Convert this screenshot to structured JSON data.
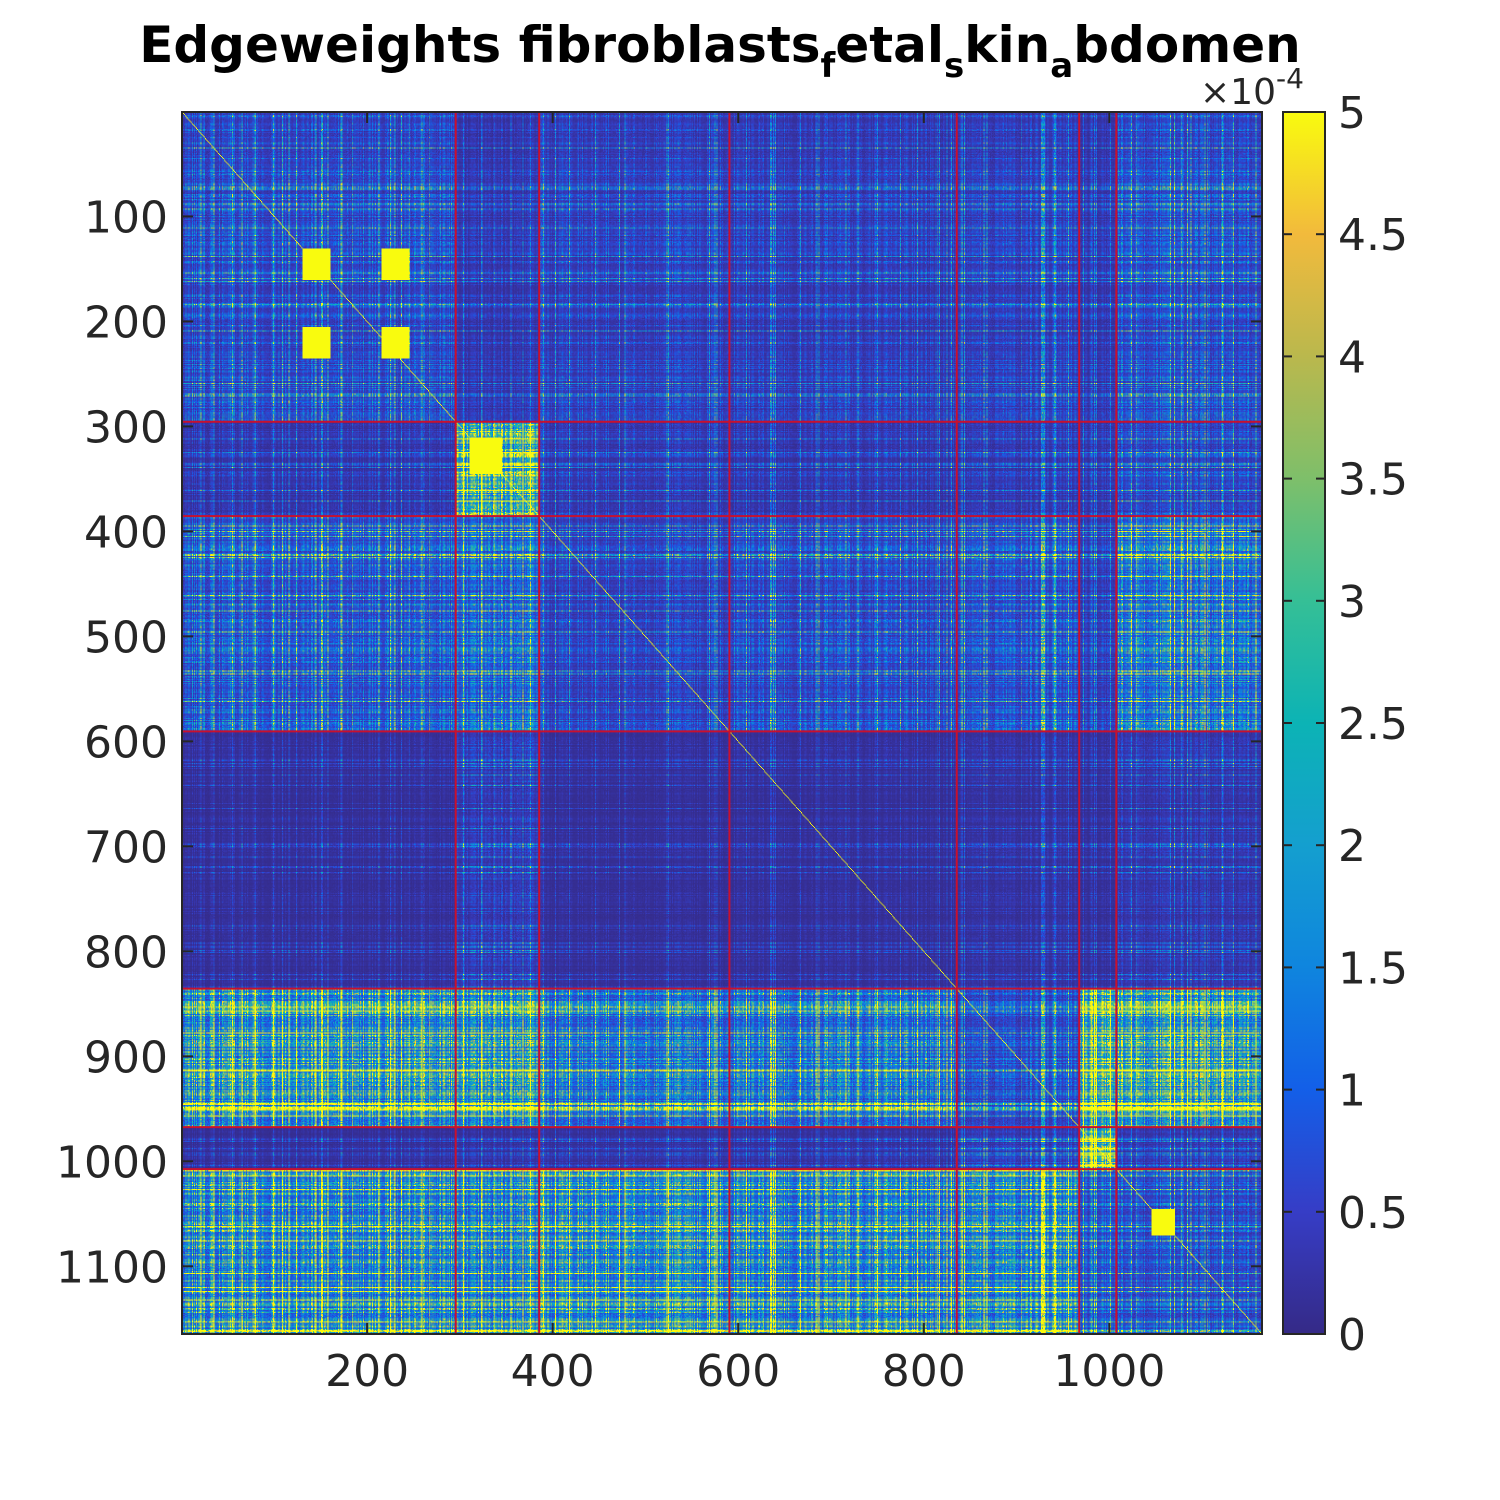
{
  "chart_data": {
    "type": "heatmap",
    "title": {
      "segments": [
        {
          "text": "Edgeweights fibroblasts",
          "sub": false
        },
        {
          "text": "f",
          "sub": true
        },
        {
          "text": "etal",
          "sub": false
        },
        {
          "text": "s",
          "sub": true
        },
        {
          "text": "kin",
          "sub": false
        },
        {
          "text": "a",
          "sub": true
        },
        {
          "text": "bdomen",
          "sub": false
        }
      ]
    },
    "matrix_size": 1164,
    "xlim": [
      0.5,
      1164.5
    ],
    "ylim": [
      0.5,
      1164.5
    ],
    "x_ticks": [
      200,
      400,
      600,
      800,
      1000
    ],
    "y_ticks": [
      100,
      200,
      300,
      400,
      500,
      600,
      700,
      800,
      900,
      1000,
      1100
    ],
    "y_reversed": true,
    "colorbar": {
      "location": "right",
      "range": [
        0,
        5
      ],
      "ticks": [
        0,
        0.5,
        1,
        1.5,
        2,
        2.5,
        3,
        3.5,
        4,
        4.5,
        5
      ],
      "tick_labels": [
        "0",
        "0.5",
        "1",
        "1.5",
        "2",
        "2.5",
        "3",
        "3.5",
        "4",
        "4.5",
        "5"
      ],
      "exponent_label": "×10",
      "exponent_power": "-4",
      "colormap": "parula"
    },
    "cluster_boundaries": [
      295,
      385,
      590,
      835,
      967,
      1007
    ],
    "boundary_color": "#c8102e",
    "block_mean_levels": [
      [
        1.2,
        0.6,
        0.9,
        0.8,
        0.9,
        0.6,
        1.3
      ],
      [
        0.6,
        4.8,
        0.7,
        0.6,
        0.7,
        0.6,
        1.1
      ],
      [
        1.6,
        2.0,
        1.0,
        1.2,
        1.4,
        0.8,
        2.5
      ],
      [
        0.3,
        0.7,
        0.3,
        0.3,
        0.4,
        0.3,
        0.6
      ],
      [
        3.6,
        3.6,
        2.4,
        2.4,
        1.3,
        4.6,
        4.2
      ],
      [
        0.3,
        0.4,
        0.4,
        0.4,
        0.8,
        5.0,
        0.7
      ],
      [
        3.2,
        3.0,
        3.4,
        3.0,
        3.2,
        1.5,
        1.4
      ]
    ],
    "hot_blocks": [
      {
        "rows": [
          130,
          160
        ],
        "cols": [
          130,
          160
        ]
      },
      {
        "rows": [
          130,
          160
        ],
        "cols": [
          215,
          245
        ]
      },
      {
        "rows": [
          205,
          235
        ],
        "cols": [
          130,
          160
        ]
      },
      {
        "rows": [
          205,
          235
        ],
        "cols": [
          215,
          245
        ]
      },
      {
        "rows": [
          310,
          345
        ],
        "cols": [
          310,
          345
        ]
      },
      {
        "rows": [
          1045,
          1070
        ],
        "cols": [
          1045,
          1070
        ]
      }
    ]
  }
}
